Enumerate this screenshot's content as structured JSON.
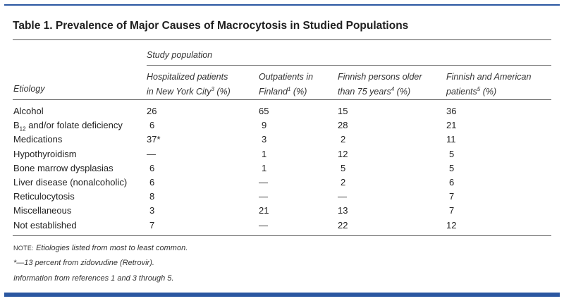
{
  "title": "Table 1. Prevalence of Major Causes of Macrocytosis in Studied Populations",
  "group_header": "Study population",
  "col_etiology": "Etiology",
  "columns": [
    {
      "line1": "Hospitalized patients",
      "line2": "in New York City",
      "ref": "3",
      "tail": " (%)"
    },
    {
      "line1": "Outpatients in",
      "line2": "Finland",
      "ref": "1",
      "tail": " (%)"
    },
    {
      "line1": "Finnish persons older",
      "line2": "than 75 years",
      "ref": "4",
      "tail": " (%)"
    },
    {
      "line1": "Finnish and American",
      "line2": "patients",
      "ref": "5",
      "tail": " (%)"
    }
  ],
  "rows": [
    {
      "label": "Alcohol",
      "values": [
        "26",
        "65",
        "15",
        "36"
      ]
    },
    {
      "label_pre": "B",
      "label_sub": "12",
      "label": " and/or folate deficiency",
      "values": [
        "6",
        "9",
        "28",
        "21"
      ]
    },
    {
      "label": "Medications",
      "values": [
        "37*",
        "3",
        "2",
        "11"
      ]
    },
    {
      "label": "Hypothyroidism",
      "values": [
        "—",
        "1",
        "12",
        "5"
      ]
    },
    {
      "label": "Bone marrow dysplasias",
      "values": [
        "6",
        "1",
        "5",
        "5"
      ]
    },
    {
      "label": "Liver disease (nonalcoholic)",
      "values": [
        "6",
        "—",
        "2",
        "6"
      ]
    },
    {
      "label": "Reticulocytosis",
      "values": [
        "8",
        "—",
        "—",
        "7"
      ]
    },
    {
      "label": "Miscellaneous",
      "values": [
        "3",
        "21",
        "13",
        "7"
      ]
    },
    {
      "label": "Not established",
      "values": [
        "7",
        "—",
        "22",
        "12"
      ]
    }
  ],
  "notes": {
    "note_label": "NOTE:",
    "note_text": " Etiologies listed from most to least common.",
    "footnote": "*—13 percent from zidovudine (Retrovir).",
    "source": "Information from references 1 and 3 through 5."
  },
  "colors": {
    "accent": "#2b57a1"
  }
}
